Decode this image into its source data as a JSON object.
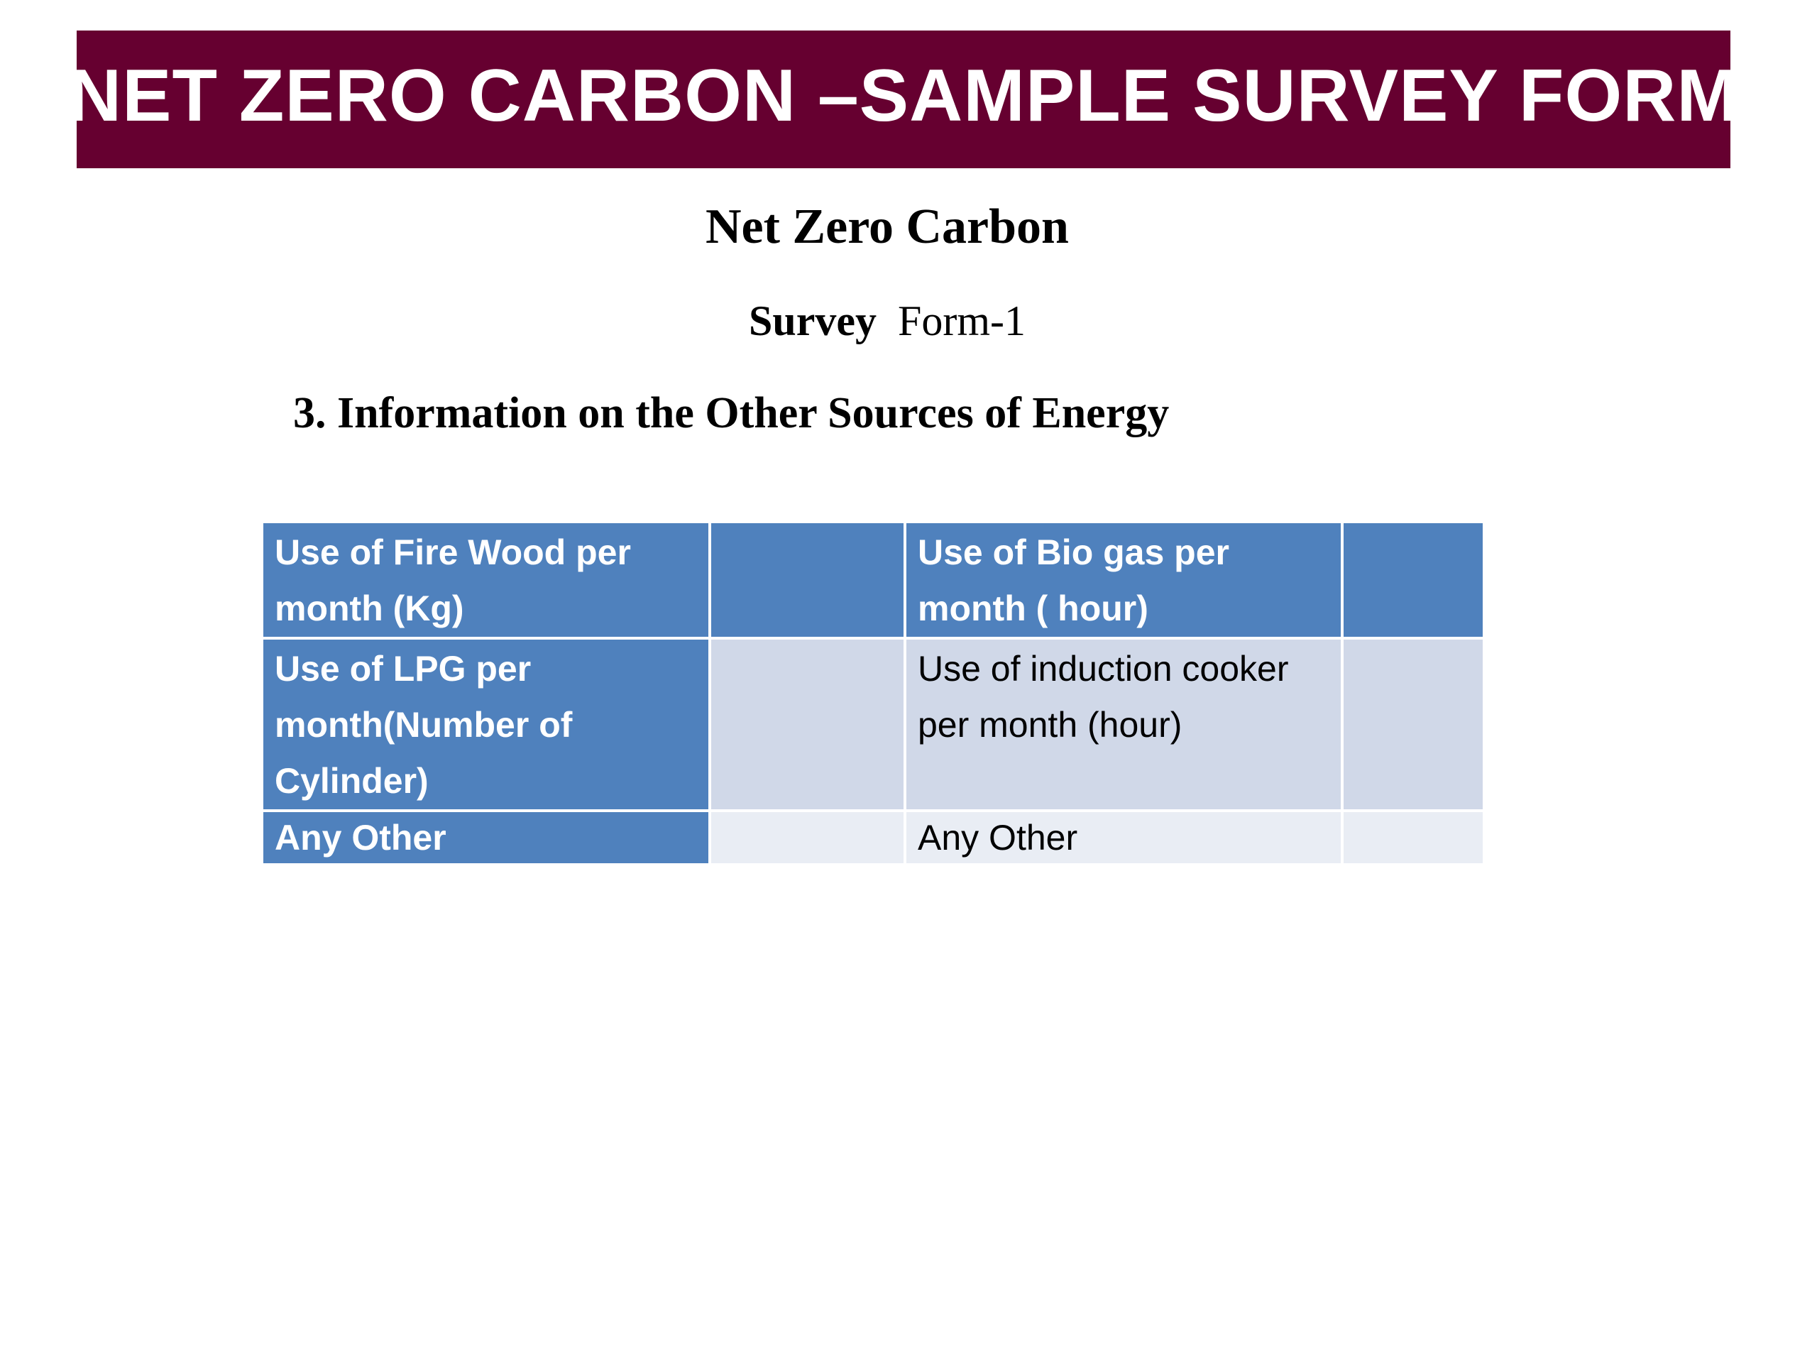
{
  "banner": {
    "title": "NET ZERO CARBON –SAMPLE SURVEY FORM"
  },
  "document": {
    "title": "Net Zero Carbon",
    "form_label_bold": "Survey",
    "form_label_rest": "Form-1",
    "section_heading": "3. Information on the Other Sources of Energy"
  },
  "table": {
    "rows": [
      {
        "left_label": "Use of Fire Wood per month (Kg)",
        "left_value": "",
        "right_label": "Use of Bio gas per month ( hour)",
        "right_value": ""
      },
      {
        "left_label": "Use of LPG per month(Number of Cylinder)",
        "left_value": "",
        "right_label": "Use of induction cooker per month (hour)",
        "right_value": ""
      },
      {
        "left_label": "Any Other",
        "left_value": "",
        "right_label": "Any Other",
        "right_value": ""
      }
    ]
  },
  "colors": {
    "banner_bg": "#660030",
    "header_blue": "#4f81bd",
    "cell_light": "#d0d8e8",
    "cell_lighter": "#e9edf4"
  }
}
